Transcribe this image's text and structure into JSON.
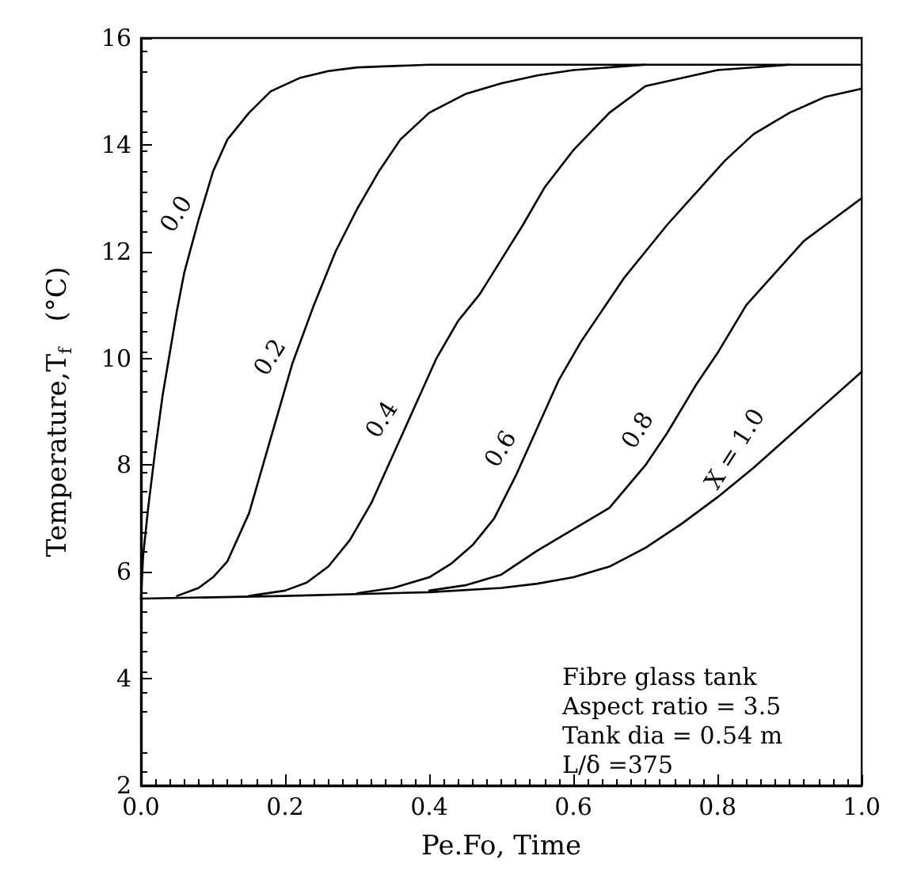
{
  "chart_data": {
    "type": "line",
    "xlabel": "Pe.Fo, Time",
    "ylabel": "Temperature,T$_{f}$   (°C)",
    "xlim": [
      0,
      1.0
    ],
    "xticks": [
      {
        "value": 0,
        "label": "0.0"
      },
      {
        "value": 0.2,
        "label": "0.2"
      },
      {
        "value": 0.4,
        "label": "0.4"
      },
      {
        "value": 0.6,
        "label": "0.6"
      },
      {
        "value": 0.8,
        "label": "0.8"
      },
      {
        "value": 1.0,
        "label": "1.0"
      }
    ],
    "ylim": [
      2,
      16
    ],
    "yticks": [
      2,
      4,
      6,
      8,
      10,
      12,
      14,
      16
    ],
    "grid": false,
    "marker": "none",
    "line_style": "solid",
    "annotations": [
      "Fibre glass tank",
      "Aspect ratio = 3.5",
      "Tank dia = 0.54 m",
      "L/δ =375"
    ],
    "series": [
      {
        "name": "0.0",
        "color": "#000000",
        "x": [
          0,
          0.003,
          0.01,
          0.02,
          0.03,
          0.04,
          0.05,
          0.06,
          0.08,
          0.1,
          0.12,
          0.15,
          0.18,
          0.22,
          0.26,
          0.3,
          0.4,
          1.0
        ],
        "values": [
          5.5,
          6.3,
          7.2,
          8.3,
          9.3,
          10.1,
          10.9,
          11.6,
          12.6,
          13.5,
          14.1,
          14.6,
          15.0,
          15.25,
          15.38,
          15.45,
          15.5,
          15.5
        ]
      },
      {
        "name": "0.2",
        "color": "#000000",
        "x": [
          0.05,
          0.08,
          0.1,
          0.12,
          0.15,
          0.18,
          0.21,
          0.24,
          0.27,
          0.3,
          0.33,
          0.36,
          0.4,
          0.45,
          0.5,
          0.55,
          0.6,
          0.7
        ],
        "values": [
          5.55,
          5.7,
          5.9,
          6.2,
          7.1,
          8.5,
          9.9,
          11.0,
          12.0,
          12.8,
          13.5,
          14.1,
          14.6,
          14.95,
          15.15,
          15.3,
          15.4,
          15.5
        ]
      },
      {
        "name": "0.4",
        "color": "#000000",
        "x": [
          0.15,
          0.2,
          0.23,
          0.26,
          0.29,
          0.32,
          0.35,
          0.38,
          0.41,
          0.44,
          0.47,
          0.5,
          0.53,
          0.56,
          0.6,
          0.65,
          0.7,
          0.8,
          0.9
        ],
        "values": [
          5.55,
          5.65,
          5.8,
          6.1,
          6.6,
          7.3,
          8.2,
          9.1,
          10.0,
          10.7,
          11.2,
          11.85,
          12.5,
          13.2,
          13.9,
          14.6,
          15.1,
          15.4,
          15.5
        ]
      },
      {
        "name": "0.6",
        "color": "#000000",
        "x": [
          0.3,
          0.35,
          0.4,
          0.43,
          0.46,
          0.49,
          0.52,
          0.55,
          0.58,
          0.61,
          0.64,
          0.67,
          0.7,
          0.73,
          0.77,
          0.81,
          0.85,
          0.9,
          0.95,
          1.0
        ],
        "values": [
          5.6,
          5.7,
          5.9,
          6.15,
          6.5,
          7.0,
          7.8,
          8.7,
          9.6,
          10.3,
          10.9,
          11.5,
          12.0,
          12.5,
          13.1,
          13.7,
          14.2,
          14.6,
          14.9,
          15.05
        ]
      },
      {
        "name": "0.8",
        "color": "#000000",
        "x": [
          0.4,
          0.45,
          0.5,
          0.55,
          0.6,
          0.65,
          0.7,
          0.73,
          0.77,
          0.8,
          0.84,
          0.88,
          0.92,
          0.96,
          1.0
        ],
        "values": [
          5.65,
          5.75,
          5.95,
          6.4,
          6.8,
          7.2,
          8.0,
          8.6,
          9.5,
          10.1,
          11.0,
          11.6,
          12.2,
          12.6,
          13.0
        ]
      },
      {
        "name": "X = 1.0",
        "color": "#000000",
        "x": [
          0,
          0.2,
          0.4,
          0.5,
          0.55,
          0.6,
          0.65,
          0.7,
          0.75,
          0.8,
          0.85,
          0.9,
          0.95,
          1.0
        ],
        "values": [
          5.5,
          5.55,
          5.62,
          5.7,
          5.78,
          5.9,
          6.1,
          6.45,
          6.9,
          7.4,
          7.95,
          8.55,
          9.15,
          9.75
        ]
      }
    ]
  }
}
